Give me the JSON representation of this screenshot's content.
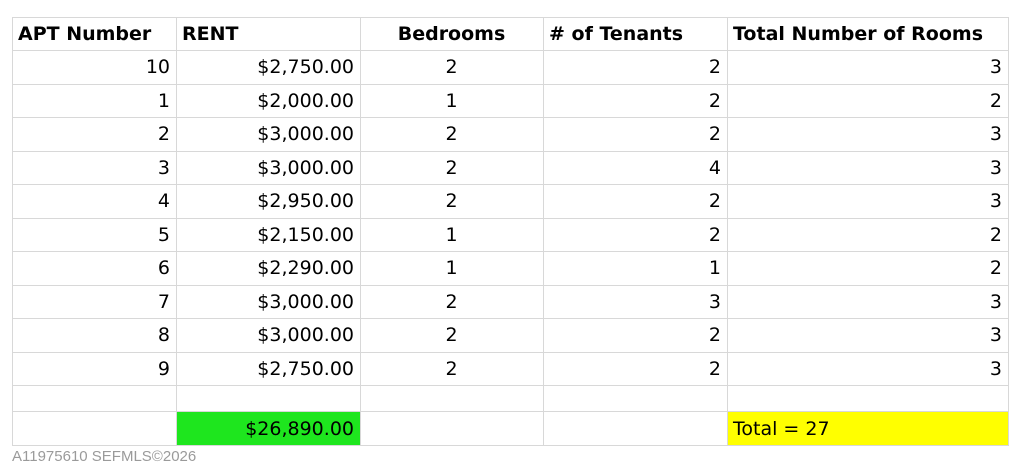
{
  "headers": [
    "APT Number",
    "RENT",
    "Bedrooms",
    "# of Tenants",
    "Total Number of Rooms"
  ],
  "rows": [
    [
      "10",
      "$2,750.00",
      "2",
      "2",
      "3"
    ],
    [
      "1",
      "$2,000.00",
      "1",
      "2",
      "2"
    ],
    [
      "2",
      "$3,000.00",
      "2",
      "2",
      "3"
    ],
    [
      "3",
      "$3,000.00",
      "2",
      "4",
      "3"
    ],
    [
      "4",
      "$2,950.00",
      "2",
      "2",
      "3"
    ],
    [
      "5",
      "$2,150.00",
      "1",
      "2",
      "2"
    ],
    [
      "6",
      "$2,290.00",
      "1",
      "1",
      "2"
    ],
    [
      "7",
      "$3,000.00",
      "2",
      "3",
      "3"
    ],
    [
      "8",
      "$3,000.00",
      "2",
      "2",
      "3"
    ],
    [
      "9",
      "$2,750.00",
      "2",
      "2",
      "3"
    ]
  ],
  "totals": {
    "rent": "$26,890.00",
    "rooms": "Total = 27"
  },
  "colors": {
    "rent_total": "#1ee61e",
    "rooms_total": "#ffff00"
  },
  "watermark": "A11975610  SEFMLS©2026"
}
